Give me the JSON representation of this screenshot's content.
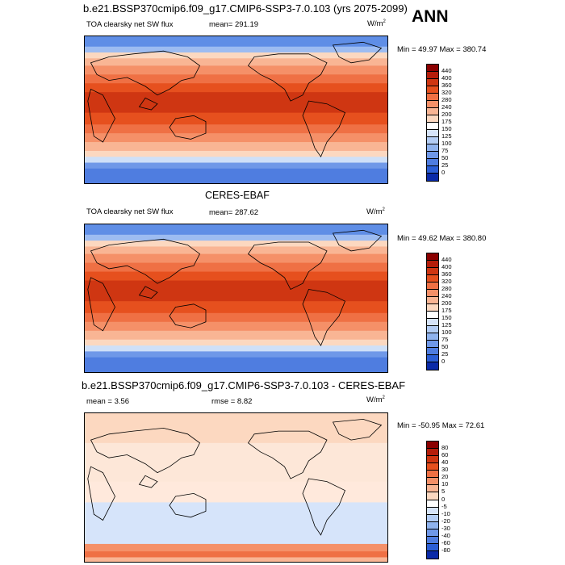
{
  "header": {
    "case_title": "b.e21.BSSP370cmip6.f09_g17.CMIP6-SSP3-7.0.103 (yrs 2075-2099)",
    "season": "ANN"
  },
  "panels": [
    {
      "id": "model",
      "title": "",
      "field_label": "TOA clearsky net SW flux",
      "stat1": "mean= 291.19",
      "stat2": "",
      "units": "W/m",
      "units_exp": "2",
      "minmax": "Min =  49.97 Max = 380.74",
      "scale": "abs"
    },
    {
      "id": "obs",
      "title": "CERES-EBAF",
      "field_label": "TOA clearsky net SW flux",
      "stat1": "mean= 287.62",
      "stat2": "",
      "units": "W/m",
      "units_exp": "2",
      "minmax": "Min =  49.62 Max = 380.80",
      "scale": "abs"
    },
    {
      "id": "diff",
      "title": "b.e21.BSSP370cmip6.f09_g17.CMIP6-SSP3-7.0.103 - CERES-EBAF",
      "field_label": "",
      "stat1": "mean =   3.56",
      "stat2": "rmse =   8.82",
      "units": "W/m",
      "units_exp": "2",
      "minmax": "Min = -50.95 Max =  72.61",
      "scale": "diff"
    }
  ],
  "colorbars": {
    "abs": {
      "labels": [
        "440",
        "400",
        "360",
        "320",
        "280",
        "240",
        "200",
        "175",
        "150",
        "125",
        "100",
        "75",
        "50",
        "25",
        "0"
      ],
      "colors": [
        "#8b0000",
        "#b51d0a",
        "#cf3612",
        "#e6501e",
        "#ef7044",
        "#f59068",
        "#f9b594",
        "#fcd8c0",
        "#ffffff",
        "#d6e4fa",
        "#b3cdf5",
        "#8fb3ee",
        "#6f98e8",
        "#4f7de0",
        "#2c5fd6",
        "#0a2aa8"
      ]
    },
    "diff": {
      "labels": [
        "80",
        "60",
        "40",
        "30",
        "20",
        "10",
        "5",
        "0",
        "-5",
        "-10",
        "-20",
        "-30",
        "-40",
        "-60",
        "-80"
      ],
      "colors": [
        "#8b0000",
        "#b51d0a",
        "#cf3612",
        "#e6501e",
        "#ef7044",
        "#f59068",
        "#f9b594",
        "#fcd8c0",
        "#ffffff",
        "#d6e4fa",
        "#b3cdf5",
        "#8fb3ee",
        "#6f98e8",
        "#4f7de0",
        "#2c5fd6",
        "#0a2aa8"
      ]
    }
  }
}
